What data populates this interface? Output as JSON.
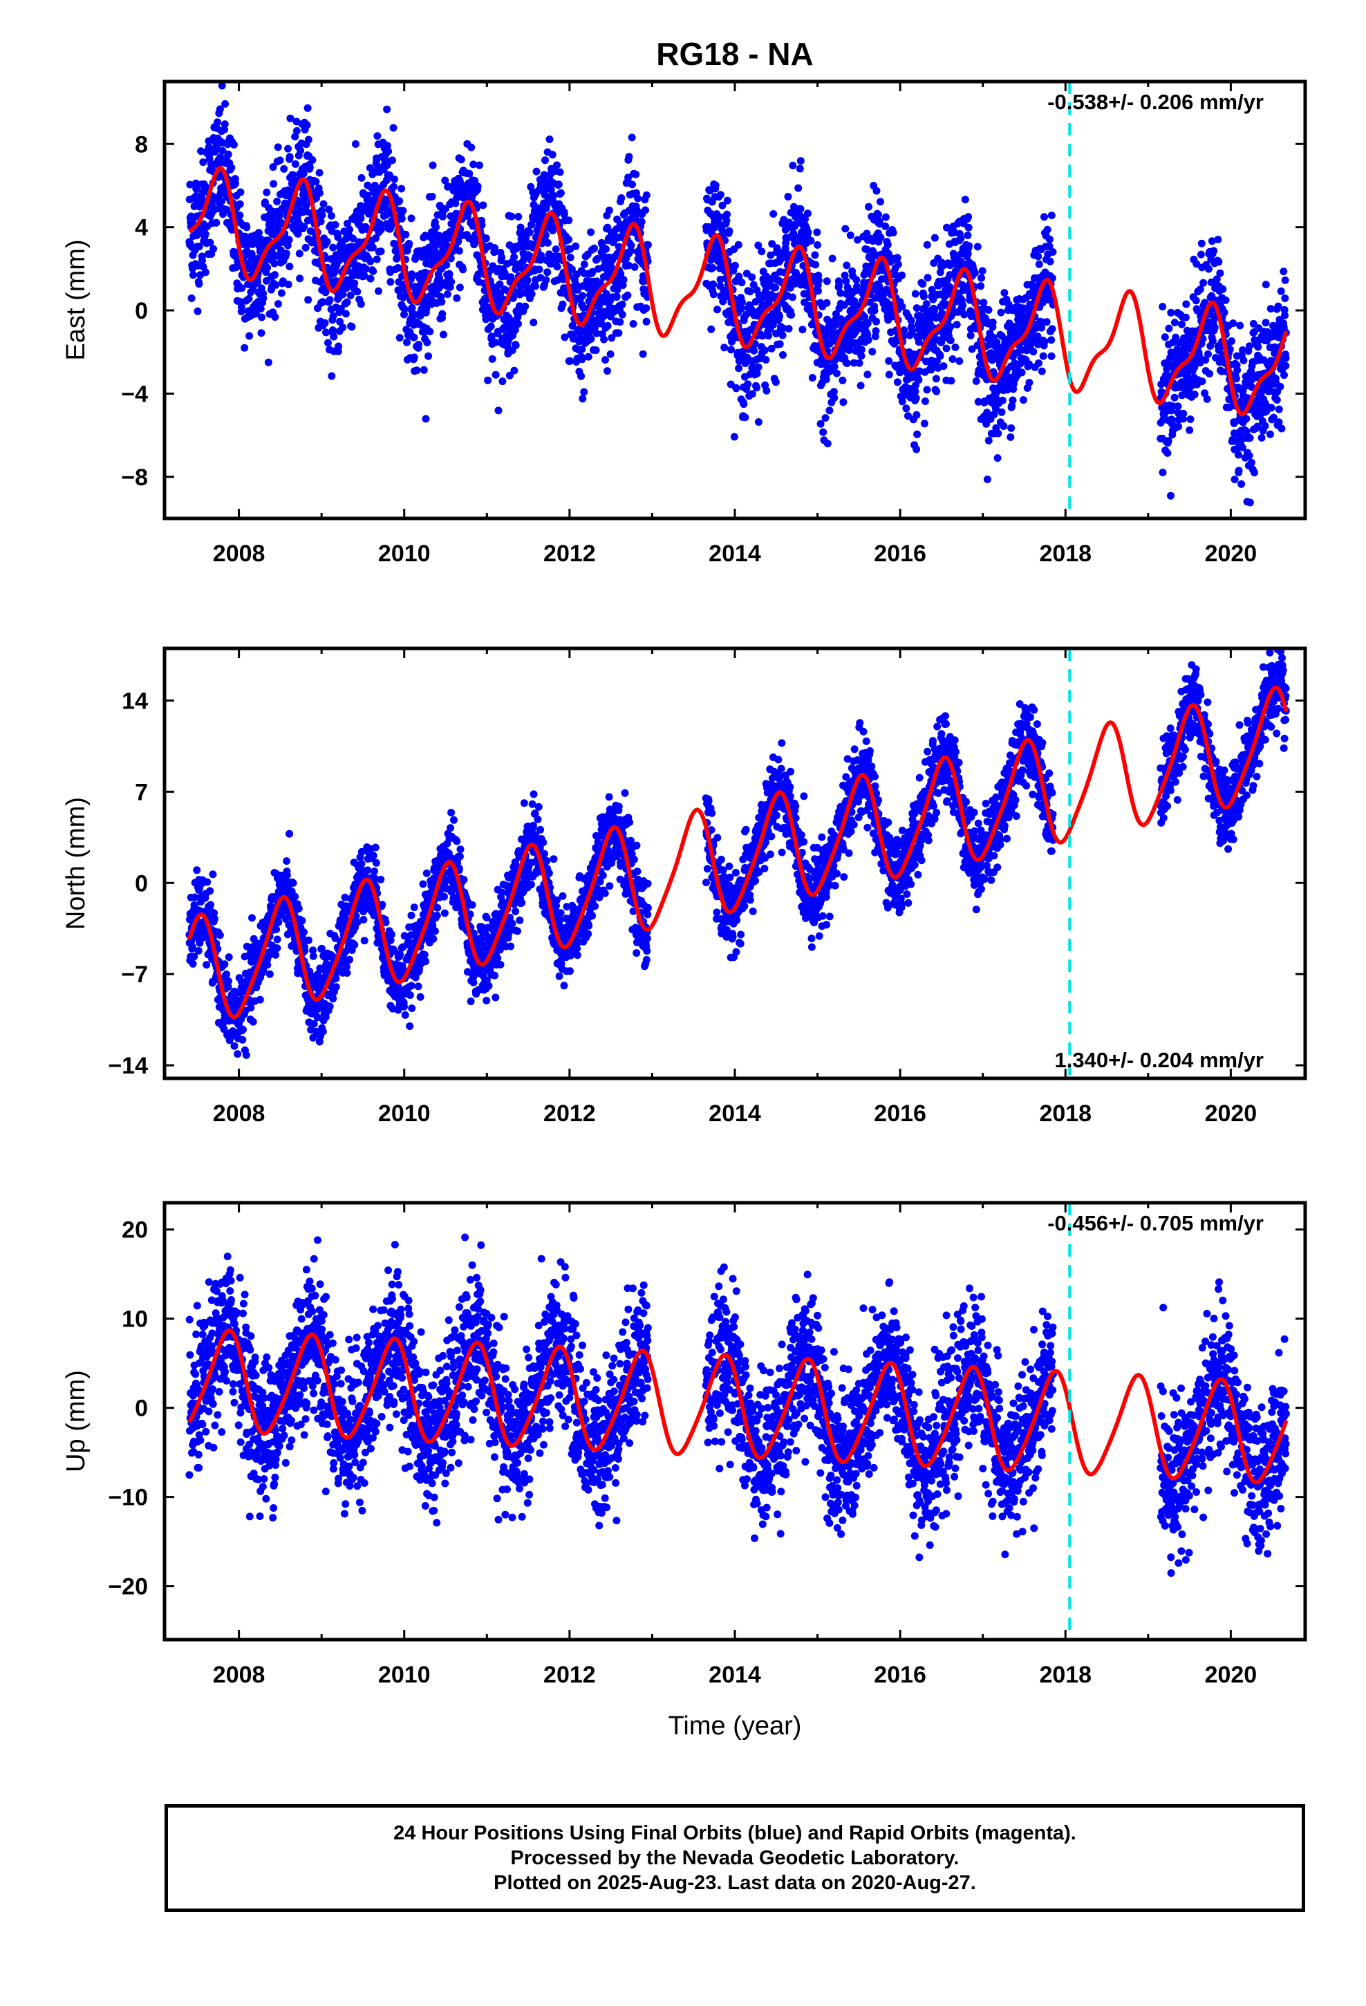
{
  "title": "RG18 - NA",
  "xlabel": "Time (year)",
  "footer": {
    "line1": "24 Hour Positions Using Final Orbits (blue) and Rapid Orbits (magenta).",
    "line2": "Processed by the Nevada Geodetic Laboratory.",
    "line3": "Plotted on 2025-Aug-23. Last data on 2020-Aug-27."
  },
  "colors": {
    "points": "#0000ff",
    "model": "#ff0000",
    "break_line": "#00e5e5",
    "frame": "#000000"
  },
  "chart_data": [
    {
      "type": "scatter",
      "ylabel": "East (mm)",
      "rate_label": "-0.538+/- 0.206 mm/yr",
      "rate_position": "top-right",
      "xlim": [
        2007.1,
        2020.9
      ],
      "ylim": [
        -10,
        11
      ],
      "yticks": [
        -8,
        -4,
        0,
        4,
        8
      ],
      "xticks": [
        2008,
        2010,
        2012,
        2014,
        2016,
        2018,
        2020
      ],
      "break_line_x": 2018.05,
      "model": {
        "rate": -0.538,
        "offset": 4.3,
        "annual_amplitude": 2.2,
        "annual_phase_peak": 0.72,
        "semiannual_amplitude": 0.8,
        "noise_sd": 1.6
      },
      "data_spans": [
        [
          2007.4,
          2012.95
        ],
        [
          2013.65,
          2017.85
        ],
        [
          2019.15,
          2020.67
        ]
      ]
    },
    {
      "type": "scatter",
      "ylabel": "North (mm)",
      "rate_label": "1.340+/- 0.204 mm/yr",
      "rate_position": "bottom-right",
      "xlim": [
        2007.1,
        2020.9
      ],
      "ylim": [
        -15,
        18
      ],
      "yticks": [
        -14,
        -7,
        0,
        7,
        14
      ],
      "xticks": [
        2008,
        2010,
        2012,
        2014,
        2016,
        2018,
        2020
      ],
      "break_line_x": 2018.05,
      "model": {
        "rate": 1.34,
        "offset": -7.0,
        "annual_amplitude": 4.0,
        "annual_phase_peak": 0.5,
        "semiannual_amplitude": 0.7,
        "noise_sd": 1.5
      },
      "data_spans": [
        [
          2007.4,
          2012.95
        ],
        [
          2013.65,
          2017.85
        ],
        [
          2019.15,
          2020.67
        ]
      ]
    },
    {
      "type": "scatter",
      "ylabel": "Up (mm)",
      "rate_label": "-0.456+/- 0.705 mm/yr",
      "rate_position": "top-right",
      "xlim": [
        2007.1,
        2020.9
      ],
      "ylim": [
        -26,
        23
      ],
      "yticks": [
        -20,
        -10,
        0,
        10,
        20
      ],
      "xticks": [
        2008,
        2010,
        2012,
        2014,
        2016,
        2018,
        2020
      ],
      "break_line_x": 2018.05,
      "model": {
        "rate": -0.456,
        "offset": 3.0,
        "annual_amplitude": 5.5,
        "annual_phase_peak": 0.85,
        "semiannual_amplitude": 0.8,
        "noise_sd": 4.0
      },
      "data_spans": [
        [
          2007.4,
          2012.95
        ],
        [
          2013.65,
          2017.85
        ],
        [
          2019.15,
          2020.67
        ]
      ]
    }
  ]
}
